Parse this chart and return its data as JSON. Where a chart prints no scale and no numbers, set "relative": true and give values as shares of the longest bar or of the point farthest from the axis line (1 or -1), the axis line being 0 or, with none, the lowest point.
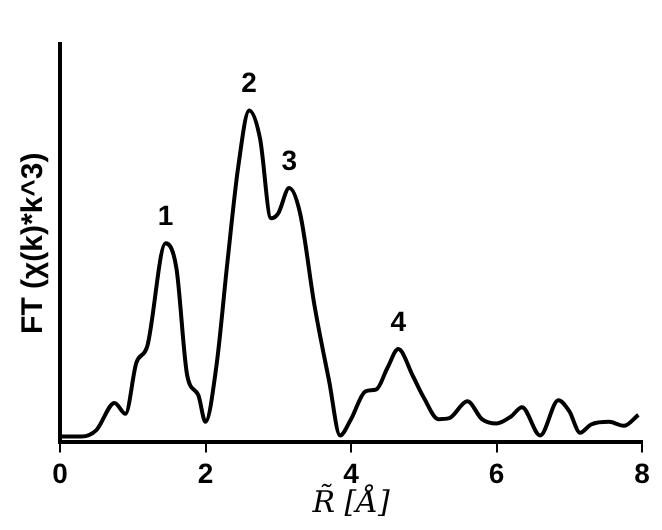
{
  "chart_data": {
    "type": "line",
    "relative": true,
    "xlabel": "R̃ [Å]",
    "ylabel": "FT (χ(k)*k^3)",
    "xlim": [
      0,
      8
    ],
    "xticks": [
      0,
      2,
      4,
      6,
      8
    ],
    "grid": false,
    "legend": false,
    "marker": "none",
    "line_style": "solid",
    "series": [
      {
        "color": "#000000",
        "x": [
          0,
          0.3,
          0.5,
          0.75,
          0.9,
          1.05,
          1.2,
          1.45,
          1.6,
          1.75,
          1.9,
          2.0,
          2.15,
          2.3,
          2.45,
          2.6,
          2.75,
          2.9,
          3.0,
          3.15,
          3.3,
          3.5,
          3.7,
          3.85,
          4.0,
          4.2,
          4.35,
          4.5,
          4.65,
          4.85,
          5.0,
          5.2,
          5.35,
          5.6,
          5.8,
          6.0,
          6.2,
          6.35,
          6.6,
          6.85,
          7.0,
          7.15,
          7.3,
          7.55,
          7.75,
          7.95
        ],
        "values": [
          0.018,
          0.018,
          0.037,
          0.119,
          0.086,
          0.24,
          0.29,
          0.6,
          0.525,
          0.2,
          0.143,
          0.062,
          0.23,
          0.54,
          0.83,
          1,
          0.915,
          0.675,
          0.69,
          0.766,
          0.69,
          0.41,
          0.184,
          0.021,
          0.07,
          0.154,
          0.16,
          0.224,
          0.281,
          0.2,
          0.135,
          0.07,
          0.073,
          0.124,
          0.07,
          0.057,
          0.078,
          0.106,
          0.021,
          0.127,
          0.094,
          0.029,
          0.054,
          0.062,
          0.05,
          0.083
        ]
      }
    ],
    "annotations": [
      {
        "text": "1",
        "x": 1.45,
        "y": 0.6
      },
      {
        "text": "2",
        "x": 2.6,
        "y": 1
      },
      {
        "text": "3",
        "x": 3.15,
        "y": 0.766
      },
      {
        "text": "4",
        "x": 4.65,
        "y": 0.281
      }
    ]
  }
}
